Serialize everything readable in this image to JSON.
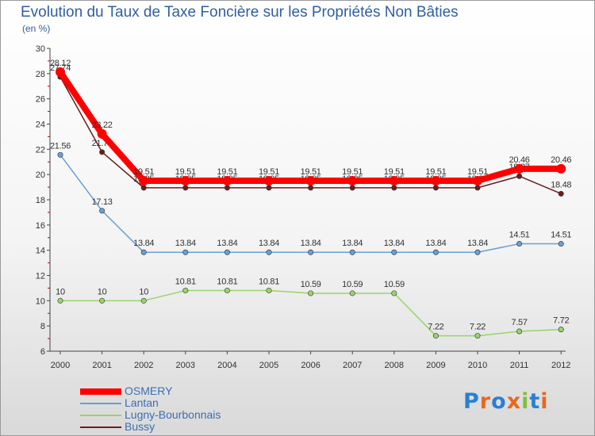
{
  "chart_data": {
    "type": "line",
    "title": "Evolution du Taux de Taxe Foncière sur les Propriétés Non Bâties",
    "ylabel": "(en %)",
    "xlabel": "",
    "ylim": [
      6,
      30
    ],
    "yticks": [
      6,
      8,
      10,
      12,
      14,
      16,
      18,
      20,
      22,
      24,
      26,
      28,
      30
    ],
    "x": [
      "2000",
      "2001",
      "2002",
      "2003",
      "2004",
      "2005",
      "2006",
      "2007",
      "2008",
      "2009",
      "2010",
      "2011",
      "2012"
    ],
    "series": [
      {
        "name": "Bussy",
        "color": "#6b1e1e",
        "values": [
          27.74,
          21.78,
          18.95,
          18.95,
          18.95,
          18.95,
          18.95,
          18.95,
          18.95,
          18.95,
          18.95,
          19.87,
          18.48
        ],
        "labels": [
          "27.74",
          "21.78",
          "18.95",
          "18.95",
          "18.95",
          "18.95",
          "18.95",
          "18.95",
          "18.95",
          "18.95",
          "18.95",
          "19.87",
          "18.48"
        ]
      },
      {
        "name": "Lugny-Bourbonnais",
        "color": "#99d36b",
        "values": [
          10,
          10,
          10,
          10.81,
          10.81,
          10.81,
          10.59,
          10.59,
          10.59,
          7.22,
          7.22,
          7.57,
          7.72
        ],
        "labels": [
          "10",
          "10",
          "10",
          "10.81",
          "10.81",
          "10.81",
          "10.59",
          "10.59",
          "10.59",
          "7.22",
          "7.22",
          "7.57",
          "7.72"
        ]
      },
      {
        "name": "Lantan",
        "color": "#6a9fd1",
        "values": [
          21.56,
          17.13,
          13.84,
          13.84,
          13.84,
          13.84,
          13.84,
          13.84,
          13.84,
          13.84,
          13.84,
          14.51,
          14.51
        ],
        "labels": [
          "21.56",
          "17.13",
          "13.84",
          "13.84",
          "13.84",
          "13.84",
          "13.84",
          "13.84",
          "13.84",
          "13.84",
          "13.84",
          "14.51",
          "14.51"
        ]
      },
      {
        "name": "OSMERY",
        "color": "#ff0000",
        "values": [
          28.12,
          23.22,
          19.51,
          19.51,
          19.51,
          19.51,
          19.51,
          19.51,
          19.51,
          19.51,
          19.51,
          20.46,
          20.46
        ],
        "labels": [
          "28.12",
          "23.22",
          "19.51",
          "19.51",
          "19.51",
          "19.51",
          "19.51",
          "19.51",
          "19.51",
          "19.51",
          "19.51",
          "20.46",
          "20.46"
        ]
      }
    ],
    "legend": [
      "OSMERY",
      "Lantan",
      "Lugny-Bourbonnais",
      "Bussy"
    ],
    "grid": false
  },
  "logo": {
    "text": "Proxiti",
    "letters": [
      "P",
      "r",
      "o",
      "x",
      "i",
      "t",
      "i"
    ],
    "colors": [
      "#2a7fd4",
      "#e8681f",
      "#2a7fd4",
      "#e8681f",
      "#80bf3f",
      "#2a7fd4",
      "#e8681f"
    ]
  }
}
